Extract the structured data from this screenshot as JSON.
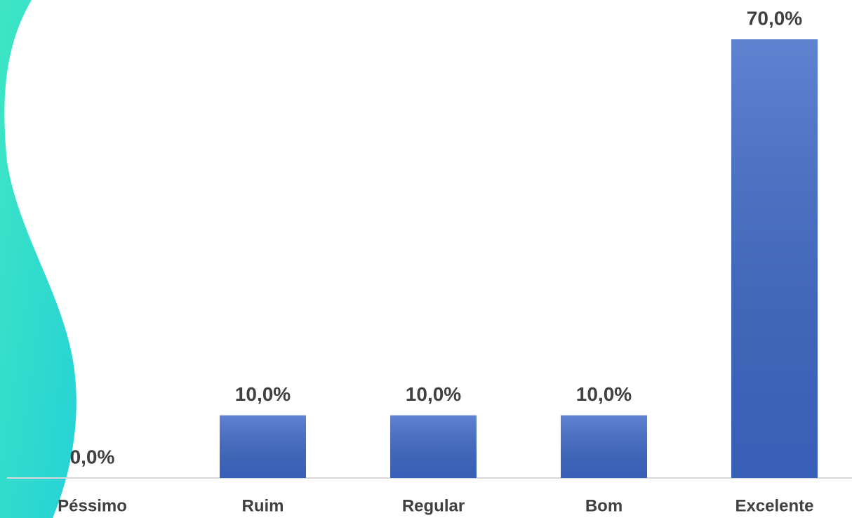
{
  "chart_data": {
    "type": "bar",
    "categories": [
      "Péssimo",
      "Ruim",
      "Regular",
      "Bom",
      "Excelente"
    ],
    "values": [
      0,
      10,
      10,
      10,
      70
    ],
    "value_labels": [
      "0,0%",
      "10,0%",
      "10,0%",
      "10,0%",
      "70,0%"
    ],
    "color": "#3d68c6"
  }
}
